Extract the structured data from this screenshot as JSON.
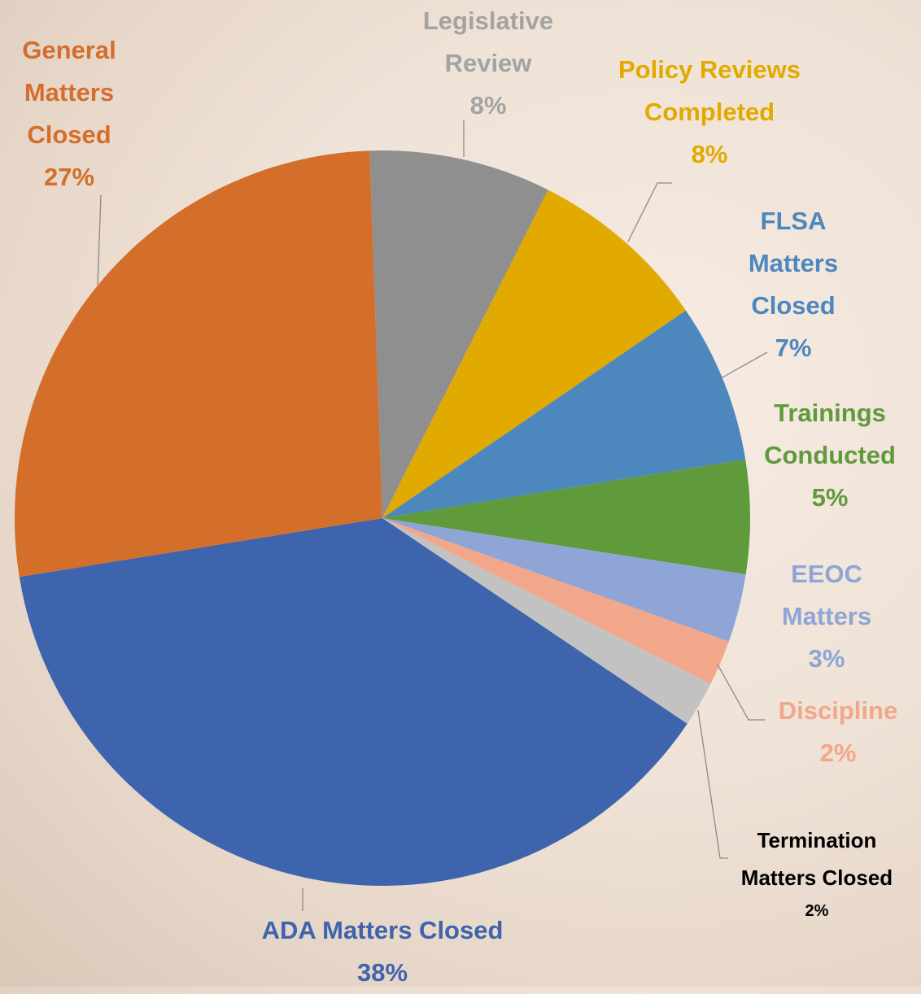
{
  "chart_data": {
    "type": "pie",
    "categories": [
      "Legislative Review",
      "Policy Reviews Completed",
      "FLSA Matters Closed",
      "Trainings Conducted",
      "EEOC Matters",
      "Discipline",
      "Termination Matters Closed",
      "ADA Matters Closed",
      "General Matters Closed"
    ],
    "values": [
      8,
      8,
      7,
      5,
      3,
      2,
      2,
      38,
      27
    ],
    "value_labels": [
      "8%",
      "8%",
      "7%",
      "5%",
      "3%",
      "2%",
      "2%",
      "38%",
      "27%"
    ],
    "colors": [
      "#8f8f8f",
      "#e2aa00",
      "#4c87bd",
      "#5f9a3b",
      "#8fa5d6",
      "#f2a78a",
      "#c2c2c2",
      "#3d64ad",
      "#d46e2b"
    ]
  }
}
